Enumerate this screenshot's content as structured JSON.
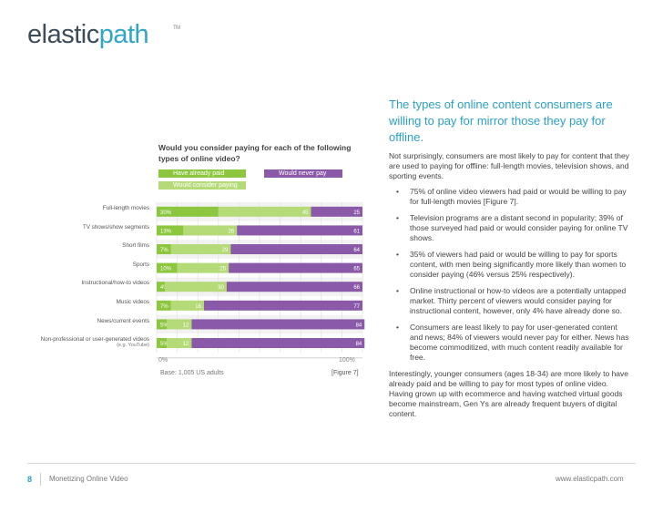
{
  "brand": {
    "name_left": "elastic",
    "name_right": "path",
    "tm": "TM"
  },
  "chart_data": {
    "type": "bar",
    "stacked": true,
    "orientation": "horizontal",
    "title": "Would you consider paying for each of the following types of online video?",
    "categories": [
      "Full-length movies",
      "TV shows/show segments",
      "Short films",
      "Sports",
      "Instructional/how-to videos",
      "Music videos",
      "News/current events",
      "Non-professional or user-generated videos"
    ],
    "category_sublabels": [
      "",
      "",
      "",
      "",
      "",
      "",
      "",
      "(e.g. YouTube)"
    ],
    "series": [
      {
        "name": "Have already paid",
        "color": "#8dc63f",
        "values": [
          30,
          13,
          7,
          10,
          4,
          7,
          5,
          5
        ],
        "labels": [
          "30%",
          "13%",
          "7%",
          "10%",
          "4%",
          "7%",
          "5%",
          "5%"
        ]
      },
      {
        "name": "Would consider paying",
        "color": "#b5da78",
        "values": [
          45,
          26,
          29,
          25,
          30,
          16,
          12,
          12
        ],
        "labels": [
          "45",
          "26",
          "29",
          "25",
          "30",
          "16",
          "12",
          "12"
        ]
      },
      {
        "name": "Would never pay",
        "color": "#8a5aa8",
        "values": [
          25,
          61,
          64,
          65,
          66,
          77,
          84,
          84
        ],
        "labels": [
          "25",
          "61",
          "64",
          "65",
          "66",
          "77",
          "84",
          "84"
        ]
      }
    ],
    "legend": [
      "Have already paid",
      "Would never pay",
      "Would consider paying"
    ],
    "xlim": [
      0,
      100
    ],
    "x_tick_labels": [
      "0%",
      "100%"
    ],
    "base_note": "Base: 1,005 US adults",
    "figure_ref": "[Figure 7]"
  },
  "article": {
    "heading": "The types of online content consumers are willing to pay for mirror those they pay for offline.",
    "intro": "Not surprisingly, consumers are most likely to pay for content that they are used to paying for offline: full-length movies, television shows, and sporting events.",
    "bullets": [
      "75% of online video viewers had paid or would be willing to pay for full-length movies [Figure 7].",
      "Television programs are a distant second in popularity; 39% of those surveyed had paid or would consider paying for online TV shows.",
      "35% of viewers had paid or would be willing to pay for sports content, with men being significantly more likely than women to consider paying (46% versus 25% respectively).",
      "Online instructional or how-to videos are a potentially untapped market. Thirty percent of viewers would consider paying for instructional content, however, only 4% have already done so.",
      "Consumers are least likely to pay for user-generated content and news; 84% of viewers would never pay for either. News has become commoditized, with much content readily available for free."
    ],
    "bullet_symbol": "•",
    "closing": "Interestingly, younger consumers (ages 18-34) are more likely to have already paid and be willing to pay for most types of online video. Having grown up with ecommerce and having watched virtual goods become mainstream, Gen Ys are already frequent buyers of digital content."
  },
  "footer": {
    "page_number": "8",
    "title": "Monetizing Online Video",
    "url": "www.elasticpath.com"
  }
}
